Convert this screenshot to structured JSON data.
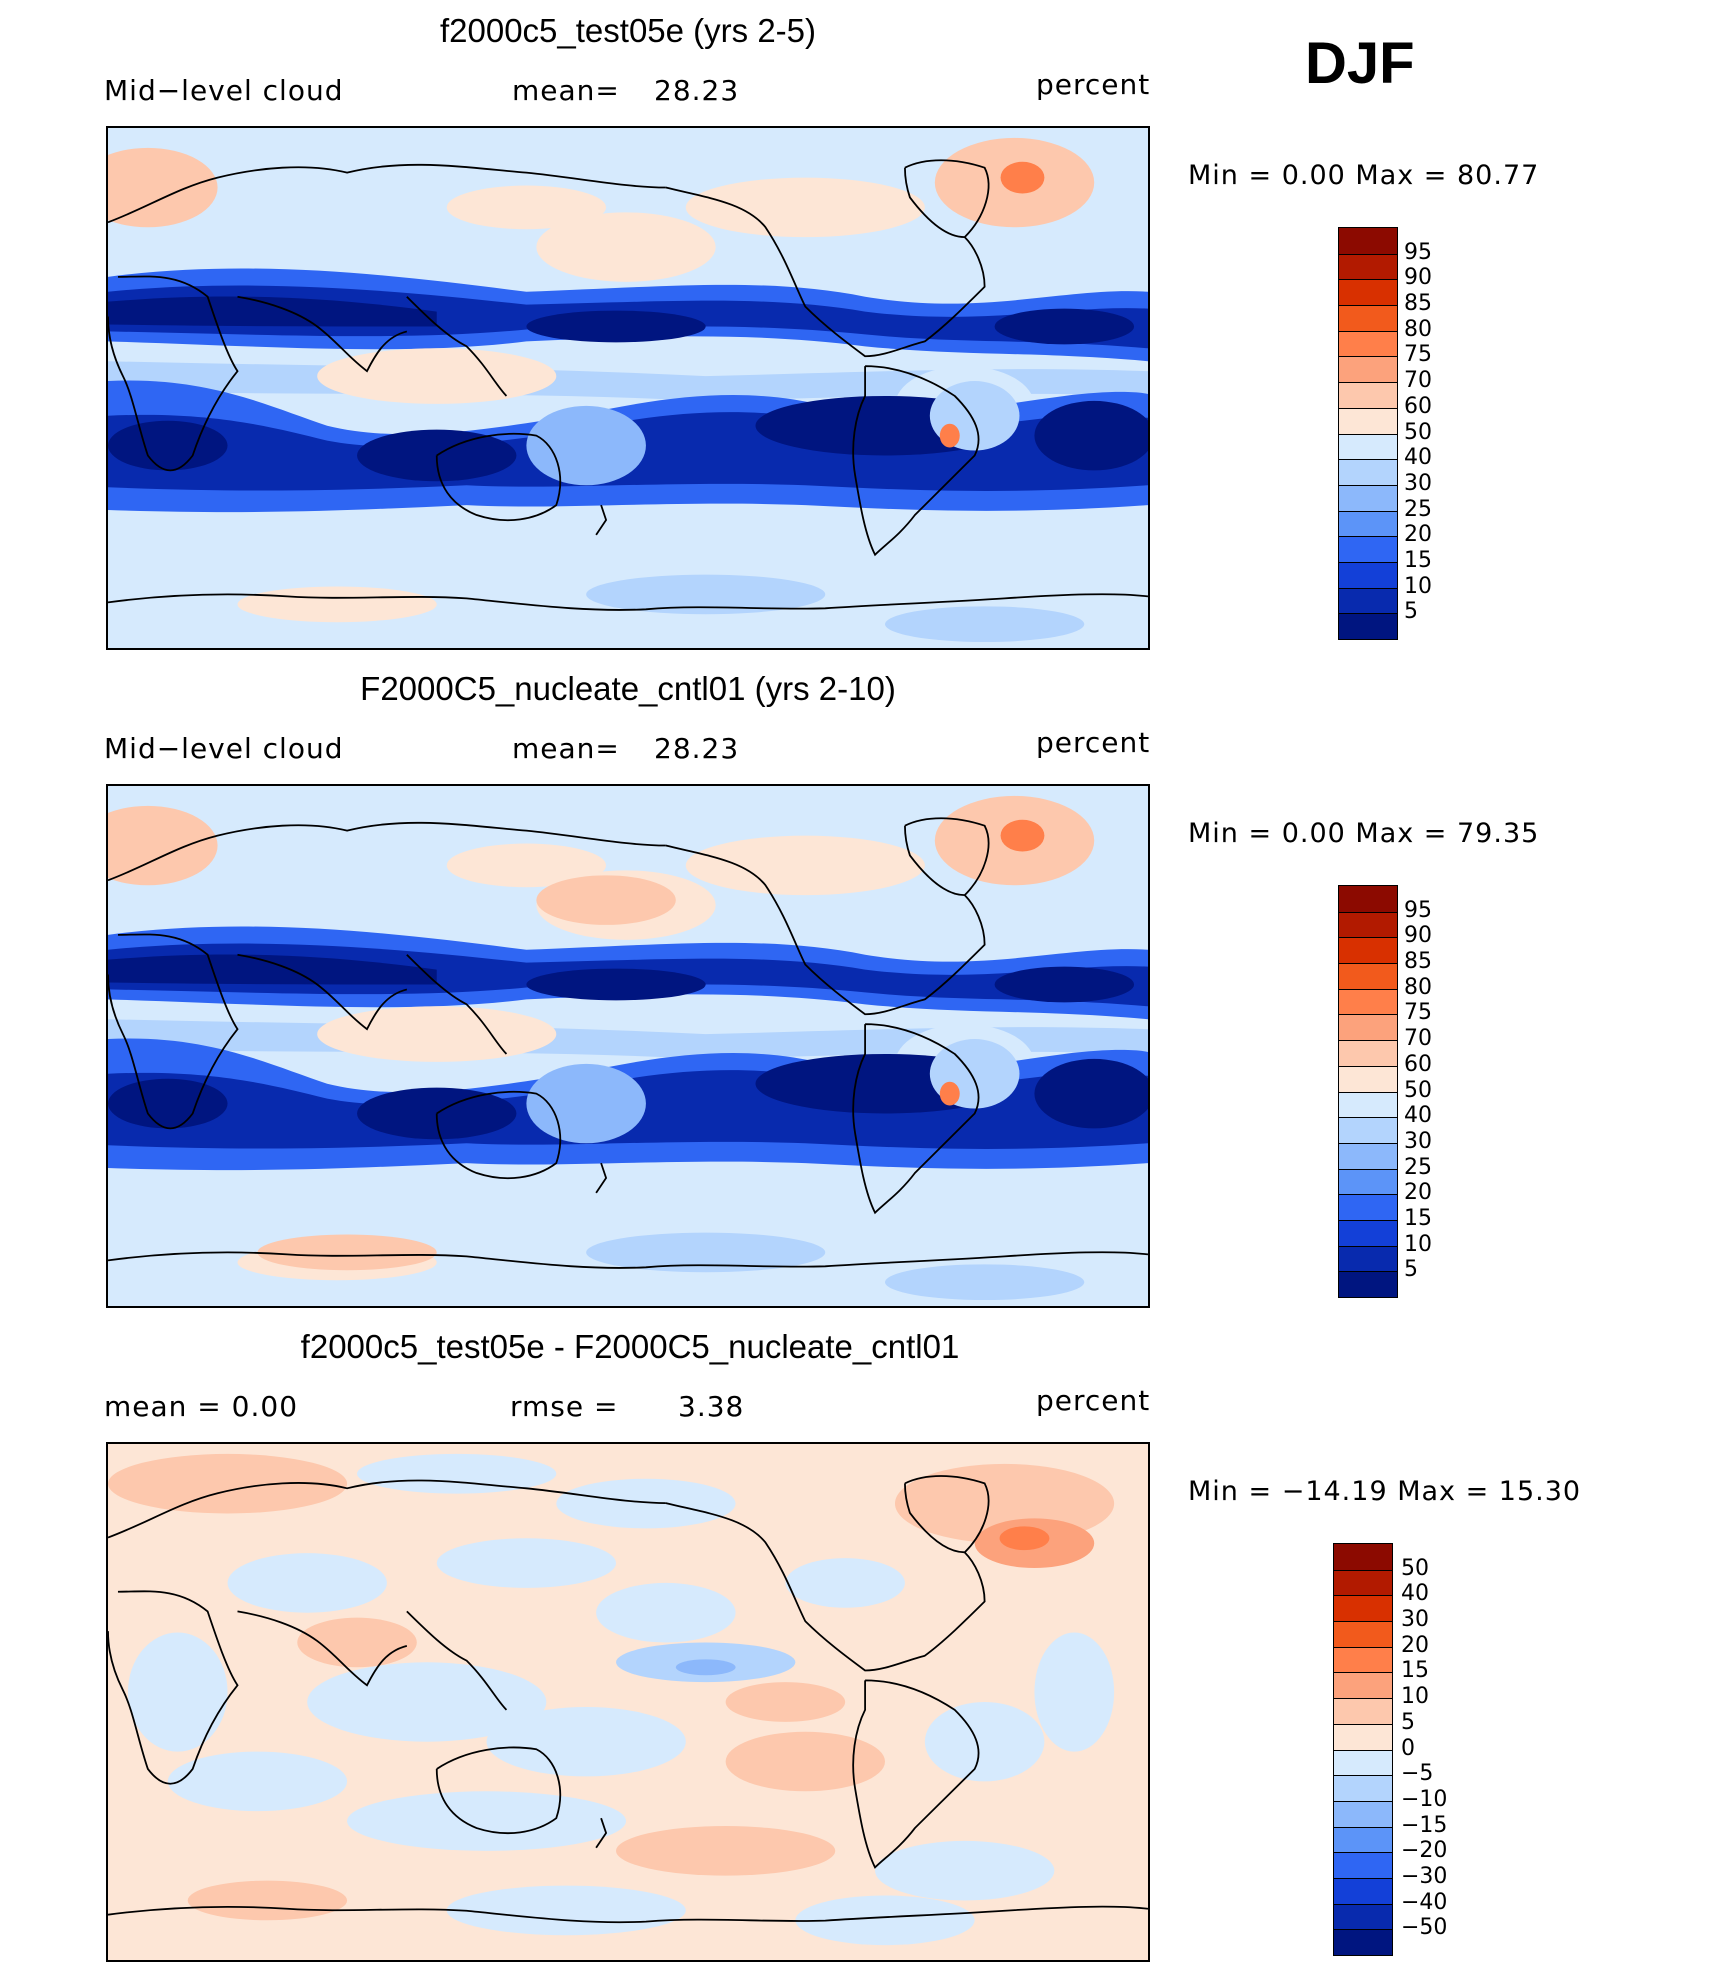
{
  "season": "DJF",
  "panels": [
    {
      "title": "f2000c5_test05e (yrs 2-5)",
      "left_label": "Mid−level cloud",
      "mid_label": "mean=",
      "mid_value": "28.23",
      "right_label": "percent",
      "minmax": "Min =     0.00  Max =    80.77",
      "palette": "abs"
    },
    {
      "title": "F2000C5_nucleate_cntl01 (yrs 2-10)",
      "left_label": "Mid−level cloud",
      "mid_label": "mean=",
      "mid_value": "28.23",
      "right_label": "percent",
      "minmax": "Min =     0.00  Max =    79.35",
      "palette": "abs"
    },
    {
      "title": "f2000c5_test05e - F2000C5_nucleate_cntl01",
      "left_label": "mean =      0.00",
      "mid_label": "rmse =",
      "mid_value": "3.38",
      "right_label": "percent",
      "minmax": "Min = −14.19  Max =    15.30",
      "palette": "diff"
    }
  ],
  "colorbars": {
    "abs": {
      "levels": [
        "95",
        "90",
        "85",
        "80",
        "75",
        "70",
        "60",
        "50",
        "40",
        "30",
        "25",
        "20",
        "15",
        "10",
        "5"
      ],
      "colors": [
        "#8c0a00",
        "#b21a00",
        "#d83000",
        "#f25a1c",
        "#ff7f4a",
        "#fca27c",
        "#fdc8ad",
        "#fde6d6",
        "#d6eafd",
        "#b3d4fd",
        "#8cb8fb",
        "#5c94f8",
        "#2f66f3",
        "#1340d8",
        "#082aae",
        "#001580"
      ]
    },
    "diff": {
      "levels": [
        "50",
        "40",
        "30",
        "20",
        "15",
        "10",
        "5",
        "0",
        "−5",
        "−10",
        "−15",
        "−20",
        "−30",
        "−40",
        "−50"
      ],
      "colors": [
        "#8c0a00",
        "#b21a00",
        "#d83000",
        "#f25a1c",
        "#ff7f4a",
        "#fca27c",
        "#fdc8ad",
        "#fde6d6",
        "#d6eafd",
        "#b3d4fd",
        "#8cb8fb",
        "#5c94f8",
        "#2f66f3",
        "#1340d8",
        "#082aae",
        "#001580"
      ]
    }
  }
}
